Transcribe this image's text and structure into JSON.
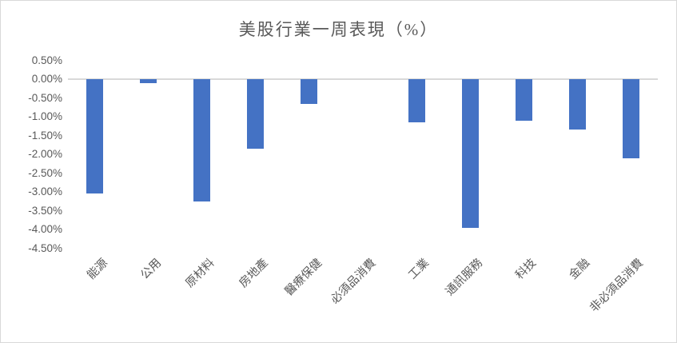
{
  "chart_data": {
    "type": "bar",
    "title": "美股行業一周表現（%）",
    "categories": [
      "能源",
      "公用",
      "原材料",
      "房地產",
      "醫療保健",
      "必須品消費",
      "工業",
      "通訊服務",
      "科技",
      "金融",
      "非必須品消費"
    ],
    "values": [
      -3.05,
      -0.1,
      -3.25,
      -1.85,
      -0.65,
      0.0,
      -1.15,
      -3.95,
      -1.1,
      -1.35,
      -2.1
    ],
    "y_ticks": [
      "0.50%",
      "0.00%",
      "-0.50%",
      "-1.00%",
      "-1.50%",
      "-2.00%",
      "-2.50%",
      "-3.00%",
      "-3.50%",
      "-4.00%",
      "-4.50%"
    ],
    "ylim": [
      0.5,
      -4.5
    ],
    "xlabel": "",
    "ylabel": "",
    "grid": "off",
    "legend": "none",
    "bar_color": "#4472C4",
    "axis_line_color": "#D9D9D9",
    "text_color": "#595959"
  }
}
